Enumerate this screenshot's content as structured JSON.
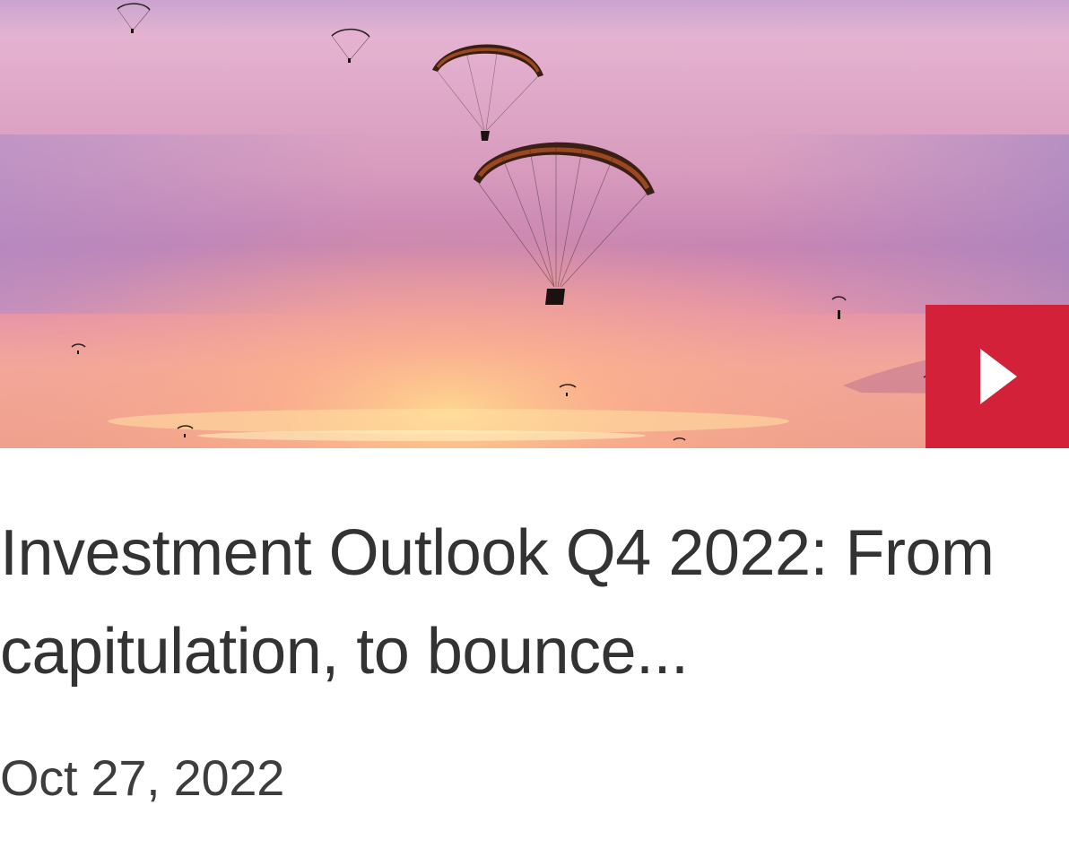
{
  "card": {
    "image": {
      "alt": "Paragliders silhouetted against a pink and orange sunset sky over the sea",
      "colors": {
        "sky_top": "#c7a3cf",
        "sky_mid": "#e2a8c4",
        "horizon": "#f1a59c",
        "sun_glow": "#ffcf8a",
        "silhouette": "#1e1512",
        "canopy": "#b34a1e"
      }
    },
    "play_button": {
      "icon": "play-icon",
      "accent_color": "#d3213a",
      "aria_label": "Play video"
    },
    "title": "Investment Outlook Q4 2022: From capitulation, to bounce...",
    "date": "Oct 27, 2022"
  }
}
